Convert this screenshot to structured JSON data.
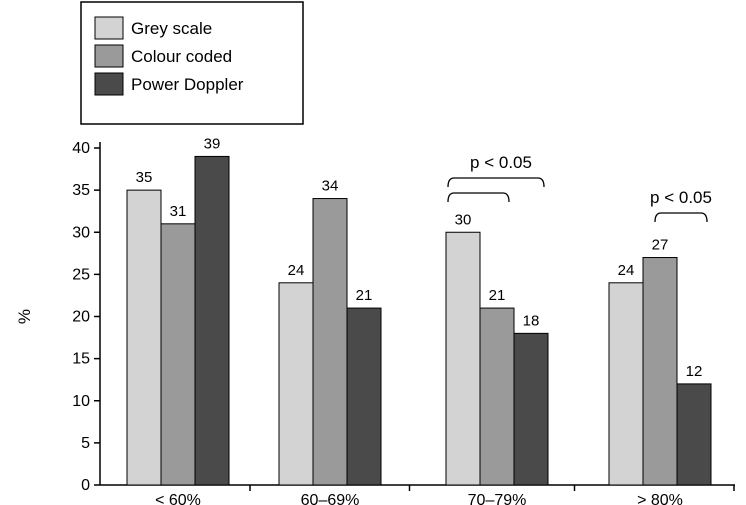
{
  "chart_data": {
    "type": "bar",
    "categories": [
      "< 60%",
      "60–69%",
      "70–79%",
      "> 80%"
    ],
    "series": [
      {
        "name": "Grey scale",
        "values": [
          35,
          24,
          30,
          24
        ],
        "color": "#d3d3d3"
      },
      {
        "name": "Colour coded",
        "values": [
          31,
          34,
          21,
          27
        ],
        "color": "#9a9a9a"
      },
      {
        "name": "Power Doppler",
        "values": [
          39,
          21,
          18,
          12
        ],
        "color": "#4a4a4a"
      }
    ],
    "ylabel": "%",
    "xlabel": "",
    "title": "",
    "ylim": [
      0,
      40
    ],
    "yticks": [
      0,
      5,
      10,
      15,
      20,
      25,
      30,
      35,
      40
    ],
    "grid": false,
    "legend_position": "top-left",
    "annotations": [
      {
        "text": "p < 0.05",
        "category_index": 2,
        "compares": [
          [
            0,
            2
          ],
          [
            0,
            1
          ]
        ]
      },
      {
        "text": "p < 0.05",
        "category_index": 3,
        "compares": [
          [
            1,
            2
          ]
        ]
      }
    ]
  }
}
